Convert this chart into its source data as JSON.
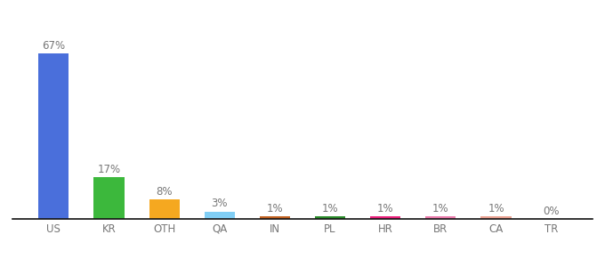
{
  "categories": [
    "US",
    "KR",
    "OTH",
    "QA",
    "IN",
    "PL",
    "HR",
    "BR",
    "CA",
    "TR"
  ],
  "values": [
    67,
    17,
    8,
    3,
    1,
    1,
    1,
    1,
    1,
    0
  ],
  "labels": [
    "67%",
    "17%",
    "8%",
    "3%",
    "1%",
    "1%",
    "1%",
    "1%",
    "1%",
    "0%"
  ],
  "bar_colors": [
    "#4a6fdb",
    "#3cb83c",
    "#f5a820",
    "#80cef5",
    "#c06020",
    "#2a8a2a",
    "#e8207a",
    "#e87aaa",
    "#e8a090",
    "#cccccc"
  ],
  "background_color": "#ffffff",
  "label_fontsize": 8.5,
  "tick_fontsize": 8.5,
  "label_color": "#777777",
  "tick_color": "#777777",
  "ylim": [
    0,
    80
  ],
  "bar_width": 0.55,
  "spine_color": "#111111"
}
